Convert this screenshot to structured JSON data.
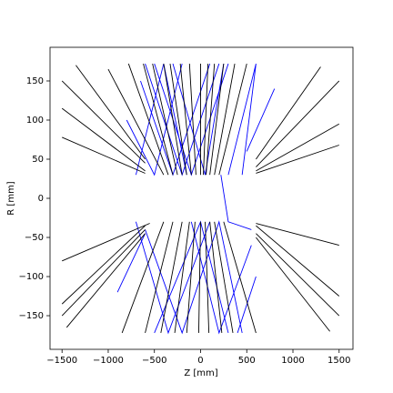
{
  "chart_data": {
    "type": "line",
    "xlabel": "Z [mm]",
    "ylabel": "R [mm]",
    "xlim": [
      -1630,
      1650
    ],
    "ylim": [
      -193,
      193
    ],
    "xticks": [
      {
        "value": -1500,
        "label": "−1500"
      },
      {
        "value": -1000,
        "label": "−1000"
      },
      {
        "value": -500,
        "label": "−500"
      },
      0,
      500,
      1000,
      1500
    ],
    "yticks": [
      {
        "value": -150,
        "label": "−150"
      },
      {
        "value": -100,
        "label": "−100"
      },
      {
        "value": -50,
        "label": "−50"
      },
      0,
      50,
      100,
      150
    ],
    "grid": false,
    "series": [
      {
        "color": "#0000ff",
        "x": [
          -650,
          -300,
          100,
          null,
          -500,
          -100,
          300,
          null,
          -700,
          -400,
          -150,
          null,
          300,
          600,
          450,
          null,
          500,
          800,
          null,
          -800,
          -500,
          -200,
          null,
          200,
          -200,
          -600,
          null,
          -600,
          -200,
          200,
          450,
          null,
          -500,
          0,
          300,
          null,
          -700,
          -350,
          100,
          null,
          600,
          400,
          null,
          550,
          200,
          -100,
          null,
          220,
          300,
          550,
          null,
          -900,
          -600,
          null,
          250,
          50,
          -300
        ],
        "values": [
          150,
          30,
          172,
          null,
          172,
          30,
          172,
          null,
          30,
          172,
          30,
          null,
          30,
          172,
          30,
          null,
          60,
          140,
          null,
          100,
          30,
          172,
          null,
          172,
          30,
          172,
          null,
          -40,
          -172,
          -30,
          -172,
          null,
          -172,
          -30,
          -172,
          null,
          -30,
          -172,
          -30,
          null,
          -100,
          -172,
          null,
          -60,
          -172,
          -30,
          null,
          30,
          -30,
          -40,
          null,
          -120,
          -45,
          null,
          172,
          30,
          172
        ]
      },
      {
        "color": "#000000",
        "x": [
          -300,
          -620,
          null,
          -250,
          -520,
          null,
          -200,
          -400,
          null,
          -150,
          -330,
          null,
          -100,
          -220,
          null,
          -50,
          -120,
          null,
          0,
          0,
          null,
          30,
          80,
          null,
          60,
          150,
          null,
          100,
          250,
          null,
          150,
          370,
          null,
          -350,
          -780,
          null,
          -400,
          -1000,
          null,
          200,
          500,
          null,
          -600,
          -1350,
          null,
          -600,
          -1500,
          null,
          -600,
          -1500,
          null,
          -600,
          -1500,
          null,
          600,
          1500,
          null,
          600,
          1500,
          null,
          600,
          1500,
          null,
          600,
          1300,
          null,
          -300,
          -600,
          null,
          -200,
          -430,
          null,
          -120,
          -280,
          null,
          -60,
          -150,
          null,
          0,
          -20,
          null,
          50,
          90,
          null,
          100,
          230,
          null,
          150,
          350,
          null,
          -400,
          -850,
          null,
          250,
          600,
          null,
          -600,
          -1500,
          null,
          -600,
          -1500,
          null,
          -600,
          -1450,
          null,
          -550,
          -1500,
          null,
          600,
          1500,
          null,
          600,
          1500,
          null,
          600,
          1500,
          null,
          600,
          1400
        ],
        "values": [
          30,
          172,
          null,
          30,
          172,
          null,
          30,
          172,
          null,
          30,
          172,
          null,
          30,
          172,
          null,
          30,
          172,
          null,
          30,
          172,
          null,
          30,
          172,
          null,
          30,
          172,
          null,
          30,
          172,
          null,
          30,
          172,
          null,
          30,
          172,
          null,
          30,
          165,
          null,
          30,
          172,
          null,
          50,
          170,
          null,
          45,
          150,
          null,
          35,
          115,
          null,
          32,
          78,
          null,
          40,
          150,
          null,
          35,
          95,
          null,
          32,
          68,
          null,
          50,
          168,
          null,
          -30,
          -172,
          null,
          -30,
          -172,
          null,
          -30,
          -172,
          null,
          -30,
          -172,
          null,
          -30,
          -172,
          null,
          -30,
          -172,
          null,
          -30,
          -172,
          null,
          -30,
          -172,
          null,
          -30,
          -172,
          null,
          -30,
          -172,
          null,
          -40,
          -150,
          null,
          -35,
          -135,
          null,
          -45,
          -165,
          null,
          -32,
          -80,
          null,
          -45,
          -150,
          null,
          -35,
          -125,
          null,
          -32,
          -60,
          null,
          -50,
          -170
        ]
      }
    ]
  }
}
